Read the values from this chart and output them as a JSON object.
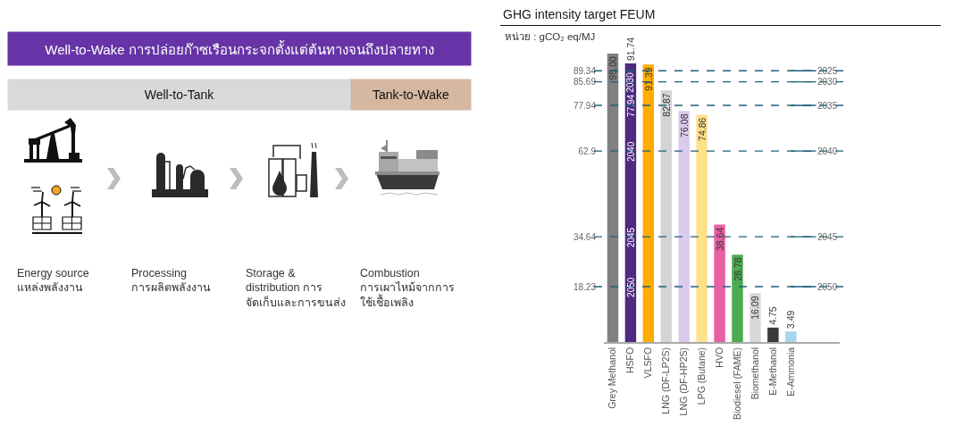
{
  "chart_data": [
    {
      "type": "other",
      "title": "Well-to-Wake การปล่อยก๊าซเรือนกระจกตั้งแต่ต้นทางจนถึงปลายทาง",
      "annotations": [
        "Well-to-Tank",
        "Tank-to-Wake",
        "Energy source\nแหล่งพลังงาน",
        "Processing\nการผลิตพลังงาน",
        "Storage &\ndistribution การ\nจัดเก็บและการขนส่ง",
        "Combustion\nการเผาไหม้จากการ\nใช้เชื้อเพลิง"
      ]
    },
    {
      "type": "bar",
      "title": "GHG intensity target FEUM",
      "subtitle": "หน่วย : gCO₂ eq/MJ",
      "categories": [
        "Grey Methanol",
        "HSFO",
        "VLSFO",
        "LNG (DF-LP2S)",
        "LNG (DF-HP2S)",
        "LPG (Butane)",
        "HVO",
        "Biodiesel (FAME)",
        "Biomethanol",
        "E-Methanol",
        "E-Ammonia"
      ],
      "values": [
        95,
        91.74,
        91.39,
        82.87,
        76.08,
        74.86,
        38.64,
        28.78,
        16.09,
        4.75,
        3.49
      ],
      "colors": [
        "#808080",
        "#4f2a7f",
        "#ffad00",
        "#d4d4d4",
        "#dacbec",
        "#ffe08a",
        "#e85fa3",
        "#4caa50",
        "#d8d8d8",
        "#3a3a3a",
        "#a6d6ee"
      ],
      "value_labels": [
        "95.00",
        "91.74",
        "91.39",
        "82.87",
        "76.08",
        "74.86",
        "38.64",
        "28.78",
        "16.09",
        "4.75",
        "3.49"
      ],
      "ylim": [
        0,
        95
      ],
      "yticks": [
        18.23,
        34.64,
        62.9,
        77.94,
        85.69,
        89.34
      ],
      "ref_lines": [
        {
          "axis": "y",
          "value": 89.34,
          "color": "#1f5f7a",
          "line_style": "dashed"
        },
        {
          "axis": "y",
          "value": 85.69,
          "color": "#1f5f7a",
          "line_style": "dashed"
        },
        {
          "axis": "y",
          "value": 77.94,
          "color": "#1f5f7a",
          "line_style": "dashed"
        },
        {
          "axis": "y",
          "value": 62.9,
          "color": "#1f5f7a",
          "line_style": "dashed"
        },
        {
          "axis": "y",
          "value": 34.64,
          "color": "#1f5f7a",
          "line_style": "dashed"
        },
        {
          "axis": "y",
          "value": 18.23,
          "color": "#1f5f7a",
          "line_style": "dashed"
        }
      ],
      "annotations": [
        {
          "text": "2030",
          "x": "HSFO",
          "y": 85.69
        },
        {
          "text": "77.94",
          "x": "HSFO",
          "y": 77.94
        },
        {
          "text": "2040",
          "x": "HSFO",
          "y": 62.9
        },
        {
          "text": "2045",
          "x": "HSFO",
          "y": 34.64
        },
        {
          "text": "2050",
          "x": "HSFO",
          "y": 18.23
        },
        {
          "text": "2025",
          "x": "E-Ammonia",
          "y": 89.34
        },
        {
          "text": "2030",
          "x": "E-Ammonia",
          "y": 85.69
        },
        {
          "text": "2035",
          "x": "E-Ammonia",
          "y": 77.94
        },
        {
          "text": "2040",
          "x": "E-Ammonia",
          "y": 62.9
        },
        {
          "text": "2045",
          "x": "E-Ammonia",
          "y": 34.64
        },
        {
          "text": "2050",
          "x": "E-Ammonia",
          "y": 18.23
        }
      ]
    }
  ]
}
